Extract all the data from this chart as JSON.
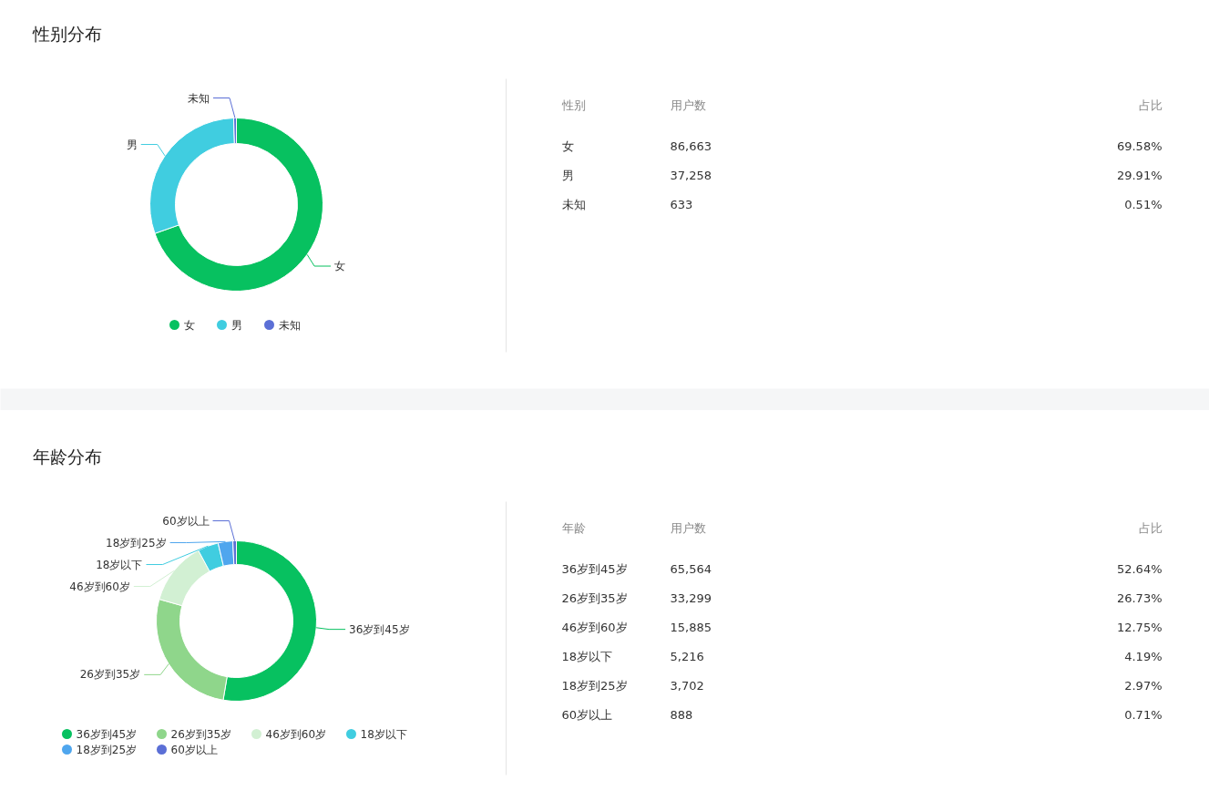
{
  "chart_data": [
    {
      "type": "donut",
      "title": "性别分布",
      "categories": [
        "女",
        "男",
        "未知"
      ],
      "values": [
        69.58,
        29.91,
        0.51
      ],
      "colors": [
        "#07c160",
        "#40cde0",
        "#5b6fd6"
      ],
      "legend": "bottom",
      "annotations": [
        "性别",
        "用户数",
        "占比",
        "86,663",
        "37,258",
        "633",
        "69.58%",
        "29.91%",
        "0.51%"
      ]
    },
    {
      "type": "donut",
      "title": "年龄分布",
      "categories": [
        "36岁到45岁",
        "26岁到35岁",
        "46岁到60岁",
        "18岁以下",
        "18岁到25岁",
        "60岁以上"
      ],
      "values": [
        52.64,
        26.73,
        12.75,
        4.19,
        2.97,
        0.71
      ],
      "colors": [
        "#07c160",
        "#8fd68b",
        "#d2f0d3",
        "#40cde0",
        "#4fa6ee",
        "#5b6fd6"
      ],
      "legend": "bottom",
      "annotations": [
        "年龄",
        "用户数",
        "占比",
        "65,564",
        "33,299",
        "15,885",
        "5,216",
        "3,702",
        "888",
        "52.64%",
        "26.73%",
        "12.75%",
        "4.19%",
        "2.97%",
        "0.71%"
      ]
    }
  ]
}
